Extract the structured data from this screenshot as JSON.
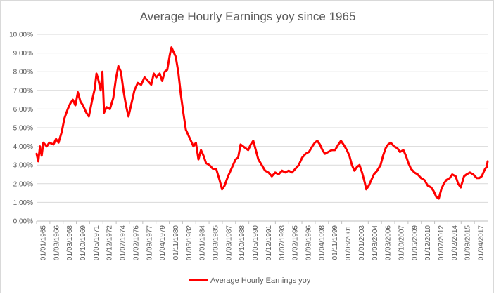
{
  "chart_data": {
    "type": "line",
    "title": "Average Hourly Earnings yoy since 1965",
    "xlabel": "",
    "ylabel": "",
    "ylim": [
      0,
      0.1
    ],
    "grid": true,
    "legend_position": "bottom",
    "y_ticks": [
      "0.00%",
      "1.00%",
      "2.00%",
      "3.00%",
      "4.00%",
      "5.00%",
      "6.00%",
      "7.00%",
      "8.00%",
      "9.00%",
      "10.00%"
    ],
    "x_ticks": [
      "01/01/1965",
      "01/08/1966",
      "01/03/1968",
      "01/10/1969",
      "01/05/1971",
      "01/12/1972",
      "01/07/1974",
      "01/02/1976",
      "01/09/1977",
      "01/04/1979",
      "01/11/1980",
      "01/06/1982",
      "01/01/1984",
      "01/08/1985",
      "01/03/1987",
      "01/10/1988",
      "01/05/1990",
      "01/12/1991",
      "01/07/1993",
      "01/02/1995",
      "01/09/1996",
      "01/04/1998",
      "01/11/1999",
      "01/06/2001",
      "01/01/2003",
      "01/08/2004",
      "01/03/2006",
      "01/10/2007",
      "01/05/2009",
      "01/12/2010",
      "01/07/2012",
      "01/02/2014",
      "01/09/2015",
      "01/04/2017"
    ],
    "x_range": [
      1965.0,
      2018.5
    ],
    "series": [
      {
        "name": "Average Hourly Earnings yoy",
        "color": "#ff0000",
        "points": [
          [
            1965.0,
            0.036
          ],
          [
            1965.2,
            0.032
          ],
          [
            1965.4,
            0.04
          ],
          [
            1965.6,
            0.035
          ],
          [
            1965.8,
            0.042
          ],
          [
            1966.2,
            0.04
          ],
          [
            1966.5,
            0.042
          ],
          [
            1967.0,
            0.041
          ],
          [
            1967.3,
            0.044
          ],
          [
            1967.6,
            0.042
          ],
          [
            1968.0,
            0.048
          ],
          [
            1968.3,
            0.055
          ],
          [
            1968.7,
            0.06
          ],
          [
            1969.0,
            0.063
          ],
          [
            1969.3,
            0.065
          ],
          [
            1969.6,
            0.062
          ],
          [
            1969.9,
            0.069
          ],
          [
            1970.2,
            0.064
          ],
          [
            1970.5,
            0.062
          ],
          [
            1970.9,
            0.058
          ],
          [
            1971.2,
            0.056
          ],
          [
            1971.6,
            0.065
          ],
          [
            1971.9,
            0.071
          ],
          [
            1972.1,
            0.079
          ],
          [
            1972.3,
            0.076
          ],
          [
            1972.6,
            0.07
          ],
          [
            1972.8,
            0.08
          ],
          [
            1973.0,
            0.058
          ],
          [
            1973.3,
            0.061
          ],
          [
            1973.7,
            0.06
          ],
          [
            1974.1,
            0.066
          ],
          [
            1974.4,
            0.076
          ],
          [
            1974.7,
            0.083
          ],
          [
            1975.0,
            0.08
          ],
          [
            1975.3,
            0.07
          ],
          [
            1975.6,
            0.062
          ],
          [
            1975.9,
            0.056
          ],
          [
            1976.2,
            0.062
          ],
          [
            1976.6,
            0.07
          ],
          [
            1977.0,
            0.074
          ],
          [
            1977.4,
            0.073
          ],
          [
            1977.8,
            0.077
          ],
          [
            1978.2,
            0.075
          ],
          [
            1978.6,
            0.073
          ],
          [
            1978.9,
            0.079
          ],
          [
            1979.2,
            0.077
          ],
          [
            1979.6,
            0.079
          ],
          [
            1979.9,
            0.075
          ],
          [
            1980.2,
            0.08
          ],
          [
            1980.5,
            0.081
          ],
          [
            1980.8,
            0.089
          ],
          [
            1981.0,
            0.093
          ],
          [
            1981.2,
            0.091
          ],
          [
            1981.5,
            0.088
          ],
          [
            1981.8,
            0.08
          ],
          [
            1982.1,
            0.068
          ],
          [
            1982.4,
            0.058
          ],
          [
            1982.7,
            0.049
          ],
          [
            1983.0,
            0.046
          ],
          [
            1983.3,
            0.043
          ],
          [
            1983.6,
            0.04
          ],
          [
            1983.9,
            0.042
          ],
          [
            1984.2,
            0.033
          ],
          [
            1984.5,
            0.038
          ],
          [
            1984.8,
            0.035
          ],
          [
            1985.1,
            0.031
          ],
          [
            1985.5,
            0.03
          ],
          [
            1985.9,
            0.028
          ],
          [
            1986.3,
            0.028
          ],
          [
            1986.7,
            0.022
          ],
          [
            1987.0,
            0.017
          ],
          [
            1987.3,
            0.019
          ],
          [
            1987.7,
            0.024
          ],
          [
            1988.0,
            0.027
          ],
          [
            1988.3,
            0.03
          ],
          [
            1988.6,
            0.033
          ],
          [
            1988.9,
            0.034
          ],
          [
            1989.2,
            0.041
          ],
          [
            1989.5,
            0.04
          ],
          [
            1989.8,
            0.039
          ],
          [
            1990.1,
            0.038
          ],
          [
            1990.4,
            0.041
          ],
          [
            1990.7,
            0.043
          ],
          [
            1991.0,
            0.038
          ],
          [
            1991.3,
            0.033
          ],
          [
            1991.7,
            0.03
          ],
          [
            1992.1,
            0.027
          ],
          [
            1992.5,
            0.026
          ],
          [
            1992.9,
            0.024
          ],
          [
            1993.3,
            0.026
          ],
          [
            1993.7,
            0.025
          ],
          [
            1994.1,
            0.027
          ],
          [
            1994.5,
            0.026
          ],
          [
            1994.9,
            0.027
          ],
          [
            1995.3,
            0.026
          ],
          [
            1995.7,
            0.028
          ],
          [
            1996.1,
            0.03
          ],
          [
            1996.5,
            0.034
          ],
          [
            1996.9,
            0.036
          ],
          [
            1997.3,
            0.037
          ],
          [
            1997.7,
            0.04
          ],
          [
            1998.0,
            0.042
          ],
          [
            1998.3,
            0.043
          ],
          [
            1998.6,
            0.041
          ],
          [
            1998.9,
            0.038
          ],
          [
            1999.2,
            0.036
          ],
          [
            1999.6,
            0.037
          ],
          [
            2000.0,
            0.038
          ],
          [
            2000.4,
            0.038
          ],
          [
            2000.8,
            0.041
          ],
          [
            2001.1,
            0.043
          ],
          [
            2001.4,
            0.041
          ],
          [
            2001.8,
            0.038
          ],
          [
            2002.1,
            0.035
          ],
          [
            2002.4,
            0.03
          ],
          [
            2002.7,
            0.027
          ],
          [
            2003.0,
            0.029
          ],
          [
            2003.3,
            0.03
          ],
          [
            2003.6,
            0.026
          ],
          [
            2003.9,
            0.021
          ],
          [
            2004.1,
            0.017
          ],
          [
            2004.4,
            0.019
          ],
          [
            2004.7,
            0.022
          ],
          [
            2005.0,
            0.025
          ],
          [
            2005.4,
            0.027
          ],
          [
            2005.8,
            0.03
          ],
          [
            2006.1,
            0.035
          ],
          [
            2006.4,
            0.039
          ],
          [
            2006.7,
            0.041
          ],
          [
            2007.0,
            0.042
          ],
          [
            2007.4,
            0.04
          ],
          [
            2007.8,
            0.039
          ],
          [
            2008.1,
            0.037
          ],
          [
            2008.5,
            0.038
          ],
          [
            2008.8,
            0.035
          ],
          [
            2009.1,
            0.031
          ],
          [
            2009.4,
            0.028
          ],
          [
            2009.8,
            0.026
          ],
          [
            2010.2,
            0.025
          ],
          [
            2010.6,
            0.023
          ],
          [
            2011.0,
            0.022
          ],
          [
            2011.4,
            0.019
          ],
          [
            2011.8,
            0.018
          ],
          [
            2012.1,
            0.016
          ],
          [
            2012.4,
            0.013
          ],
          [
            2012.7,
            0.012
          ],
          [
            2013.0,
            0.017
          ],
          [
            2013.3,
            0.02
          ],
          [
            2013.6,
            0.022
          ],
          [
            2014.0,
            0.023
          ],
          [
            2014.3,
            0.025
          ],
          [
            2014.7,
            0.024
          ],
          [
            2015.0,
            0.02
          ],
          [
            2015.3,
            0.018
          ],
          [
            2015.7,
            0.024
          ],
          [
            2016.0,
            0.025
          ],
          [
            2016.4,
            0.026
          ],
          [
            2016.8,
            0.025
          ],
          [
            2017.2,
            0.023
          ],
          [
            2017.5,
            0.023
          ],
          [
            2017.8,
            0.024
          ],
          [
            2018.0,
            0.026
          ],
          [
            2018.2,
            0.028
          ],
          [
            2018.4,
            0.029
          ],
          [
            2018.5,
            0.032
          ]
        ]
      }
    ]
  }
}
